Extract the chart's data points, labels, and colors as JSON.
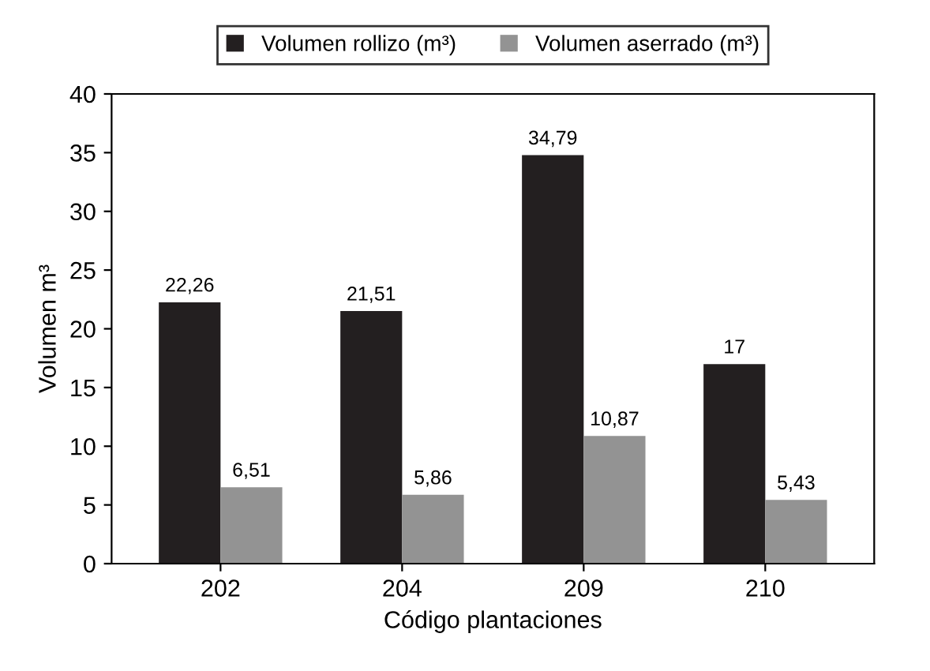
{
  "chart_data": {
    "type": "bar",
    "xlabel": "Código plantaciones",
    "ylabel": "Volumen m³",
    "categories": [
      "202",
      "204",
      "209",
      "210"
    ],
    "series": [
      {
        "name": "Volumen rollizo (m³)",
        "color": "#231f20",
        "values": [
          22.26,
          21.51,
          34.79,
          17
        ],
        "value_labels": [
          "22,26",
          "21,51",
          "34,79",
          "17"
        ]
      },
      {
        "name": "Volumen aserrado (m³)",
        "color": "#939393",
        "values": [
          6.51,
          5.86,
          10.87,
          5.43
        ],
        "value_labels": [
          "6,51",
          "5,86",
          "10,87",
          "5,43"
        ]
      }
    ],
    "ylim": [
      0,
      40
    ],
    "yticks": [
      0,
      5,
      10,
      15,
      20,
      25,
      30,
      35,
      40
    ],
    "grid": false,
    "legend": "top"
  }
}
